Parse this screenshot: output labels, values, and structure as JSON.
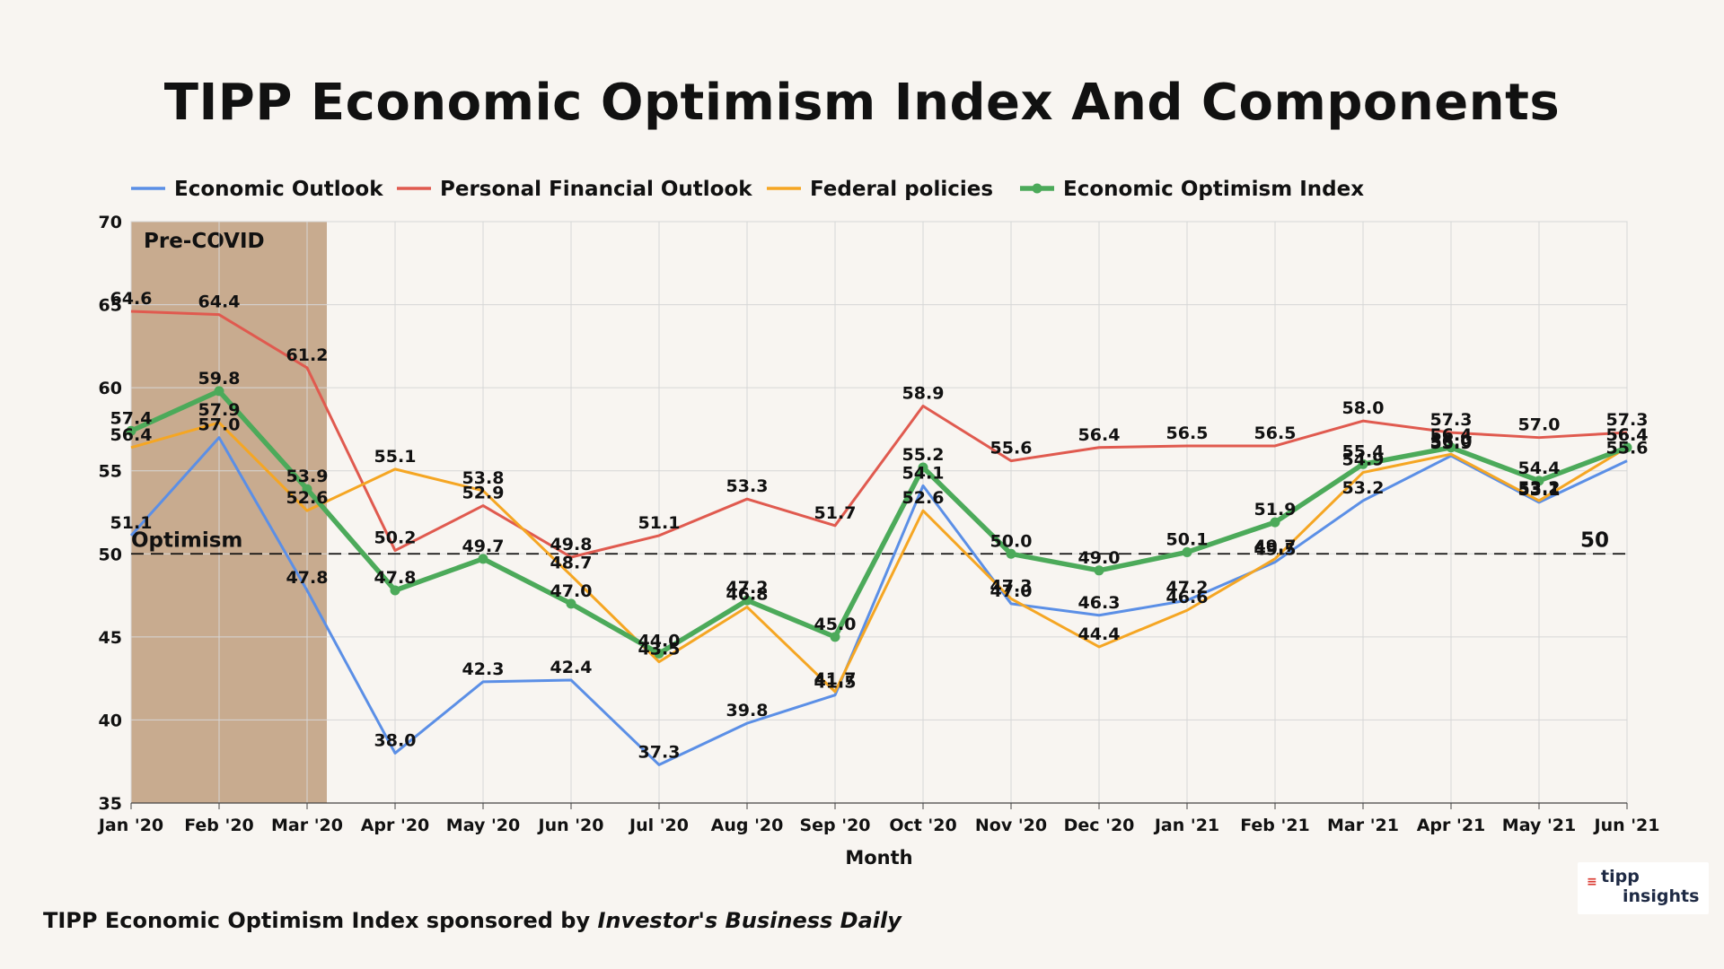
{
  "title": "TIPP Economic Optimism Index And Components",
  "footer": {
    "prefix": "TIPP Economic Optimism Index sponsored by ",
    "publication": "Investor's Business Daily"
  },
  "logo": {
    "line1": "tipp",
    "line2": "insights"
  },
  "chart_data": {
    "type": "line",
    "title": "TIPP Economic Optimism Index And Components",
    "xlabel": "Month",
    "ylabel": "",
    "ylim": [
      35,
      70
    ],
    "yticks": [
      "35",
      "40",
      "45",
      "50",
      "55",
      "60",
      "65",
      "70"
    ],
    "grid": true,
    "legend_position": "top",
    "categories": [
      "Jan '20",
      "Feb '20",
      "Mar '20",
      "Apr '20",
      "May '20",
      "Jun '20",
      "Jul '20",
      "Aug '20",
      "Sep '20",
      "Oct '20",
      "Nov '20",
      "Dec '20",
      "Jan '21",
      "Feb '21",
      "Mar '21",
      "Apr '21",
      "May '21",
      "Jun '21"
    ],
    "series": [
      {
        "name": "Economic Outlook",
        "color": "#5b8fe6",
        "values": [
          51.1,
          57.0,
          47.8,
          38.0,
          42.3,
          42.4,
          37.3,
          39.8,
          41.5,
          54.1,
          47.0,
          46.3,
          47.2,
          49.5,
          53.2,
          55.9,
          53.1,
          55.6
        ],
        "labels": [
          "51.1",
          "57.0",
          "47.8",
          "38.0",
          "42.3",
          "42.4",
          "37.3",
          "39.8",
          "41.5",
          "54.1",
          "47.0",
          "46.3",
          "47.2",
          "49.5",
          "53.2",
          "55.9",
          "53.1",
          "55.6"
        ]
      },
      {
        "name": "Personal Financial Outlook",
        "color": "#e05a4f",
        "values": [
          64.6,
          64.4,
          61.2,
          50.2,
          52.9,
          49.8,
          51.1,
          53.3,
          51.7,
          58.9,
          55.6,
          56.4,
          56.5,
          56.5,
          58.0,
          57.3,
          57.0,
          57.3
        ],
        "labels": [
          "64.6",
          "64.4",
          "61.2",
          "50.2",
          "52.9",
          "49.8",
          "51.1",
          "53.3",
          "51.7",
          "58.9",
          "55.6",
          "56.4",
          "56.5",
          "56.5",
          "58.0",
          "57.3",
          "57.0",
          "57.3"
        ]
      },
      {
        "name": "Federal policies",
        "color": "#f5a623",
        "values": [
          56.4,
          57.9,
          52.6,
          55.1,
          53.8,
          48.7,
          43.5,
          46.8,
          41.7,
          52.6,
          47.3,
          44.4,
          46.6,
          49.7,
          54.9,
          56.0,
          53.2,
          56.4
        ],
        "labels": [
          "56.4",
          "57.9",
          "52.6",
          "55.1",
          "53.8",
          "48.7",
          "43.5",
          "46.8",
          "41.7",
          "52.6",
          "47.3",
          "44.4",
          "46.6",
          "49.7",
          "54.9",
          "56.0",
          "53.2",
          "56.4"
        ]
      },
      {
        "name": "Economic Optimism Index",
        "color": "#4caa5a",
        "values": [
          57.4,
          59.8,
          53.9,
          47.8,
          49.7,
          47.0,
          44.0,
          47.2,
          45.0,
          55.2,
          50.0,
          49.0,
          50.1,
          51.9,
          55.4,
          56.4,
          54.4,
          56.4
        ],
        "labels": [
          "57.4",
          "59.8",
          "53.9",
          "47.8",
          "49.7",
          "47.0",
          "44.0",
          "47.2",
          "45.0",
          "55.2",
          "50.0",
          "49.0",
          "50.1",
          "51.9",
          "55.4",
          "56.4",
          "54.4",
          "56.4"
        ]
      }
    ],
    "reference_line": {
      "value": 50,
      "label_left": "Optimism",
      "label_right": "50"
    },
    "shaded_region": {
      "label": "Pre-COVID",
      "color": "#c8ab8f",
      "from_category": "Jan '20",
      "to_category": "Mar '20"
    }
  }
}
